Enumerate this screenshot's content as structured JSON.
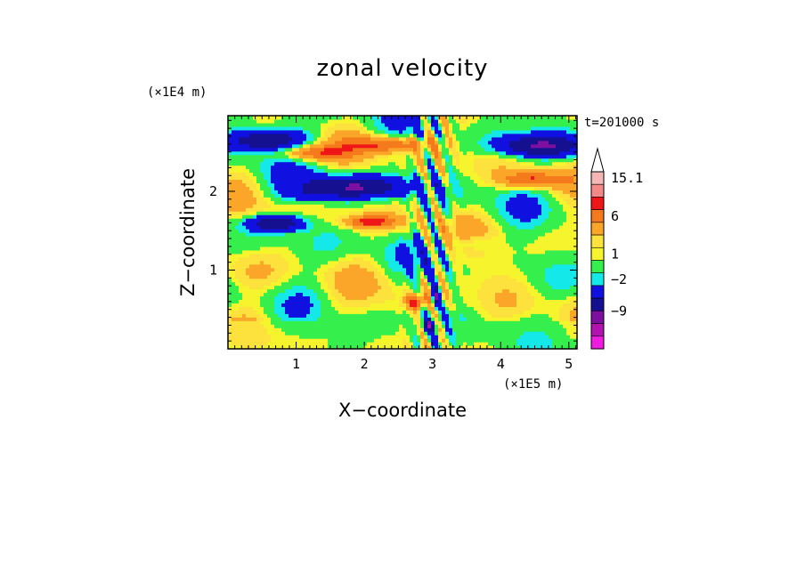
{
  "chart_data": {
    "type": "heatmap",
    "title": "zonal velocity",
    "xlabel": "X−coordinate",
    "ylabel": "Z−coordinate",
    "x_scale_label": "(×1E5 m)",
    "y_scale_label": "(×1E4 m)",
    "time_label": "t=201000 s",
    "xlim": [
      0,
      5.12
    ],
    "ylim": [
      0,
      2.96
    ],
    "x_ticks": [
      "1",
      "2",
      "3",
      "4",
      "5"
    ],
    "x_tick_values": [
      1,
      2,
      3,
      4,
      5
    ],
    "y_ticks": [
      "1",
      "2"
    ],
    "y_tick_values": [
      1,
      2
    ],
    "colorbar": {
      "labels": [
        "15.1",
        "6",
        "1",
        "−2",
        "−9"
      ],
      "label_values": [
        15.1,
        6,
        1,
        -2,
        -9
      ],
      "levels_top_to_bottom": [
        {
          "color": "#f4b7b4"
        },
        {
          "color": "#f38a87"
        },
        {
          "color": "#ee1616"
        },
        {
          "color": "#f57a1c"
        },
        {
          "color": "#fba629"
        },
        {
          "color": "#fde13c"
        },
        {
          "color": "#f6f42c"
        },
        {
          "color": "#35ef4d"
        },
        {
          "color": "#15e8e8"
        },
        {
          "color": "#1010e0"
        },
        {
          "color": "#141090"
        },
        {
          "color": "#7d10a0"
        },
        {
          "color": "#b213b0"
        },
        {
          "color": "#f01ce0"
        }
      ],
      "extend": "max"
    },
    "field_features": [
      {
        "value": -9,
        "x": 0.55,
        "z": 2.65,
        "rx": 0.6,
        "rz": 0.15
      },
      {
        "value": -9,
        "x": 1.85,
        "z": 2.06,
        "rx": 0.75,
        "rz": 0.14
      },
      {
        "value": -9,
        "x": 4.55,
        "z": 2.58,
        "rx": 0.62,
        "rz": 0.13
      },
      {
        "value": -9,
        "x": 0.7,
        "z": 1.6,
        "rx": 0.4,
        "rz": 0.1
      },
      {
        "value": -2,
        "x": 1.1,
        "z": 1.95,
        "rx": 0.45,
        "rz": 0.08
      },
      {
        "value": -2,
        "x": 3.6,
        "z": 1.35,
        "rx": 0.35,
        "rz": 0.1
      },
      {
        "value": -9,
        "x": 3.05,
        "z": 0.65,
        "rx": 0.05,
        "rz": 0.12
      },
      {
        "value": -9,
        "x": 2.95,
        "z": 0.3,
        "rx": 0.08,
        "rz": 0.07
      },
      {
        "value": 6,
        "x": 1.15,
        "z": 2.5,
        "rx": 0.55,
        "rz": 0.1
      },
      {
        "value": 6,
        "x": 2.4,
        "z": 2.6,
        "rx": 0.6,
        "rz": 0.1
      },
      {
        "value": 6,
        "x": 4.45,
        "z": 2.15,
        "rx": 0.45,
        "rz": 0.1
      },
      {
        "value": 6,
        "x": 2.1,
        "z": 1.62,
        "rx": 0.4,
        "rz": 0.08
      },
      {
        "value": 6,
        "x": 2.75,
        "z": 0.6,
        "rx": 0.15,
        "rz": 0.1
      },
      {
        "value": 1,
        "x": 0.3,
        "z": 1.0,
        "rx": 0.35,
        "rz": 0.25
      },
      {
        "value": 1,
        "x": 3.9,
        "z": 0.95,
        "rx": 0.45,
        "rz": 0.25
      },
      {
        "value": 1,
        "x": 1.5,
        "z": 0.45,
        "rx": 0.45,
        "rz": 0.2
      }
    ]
  }
}
